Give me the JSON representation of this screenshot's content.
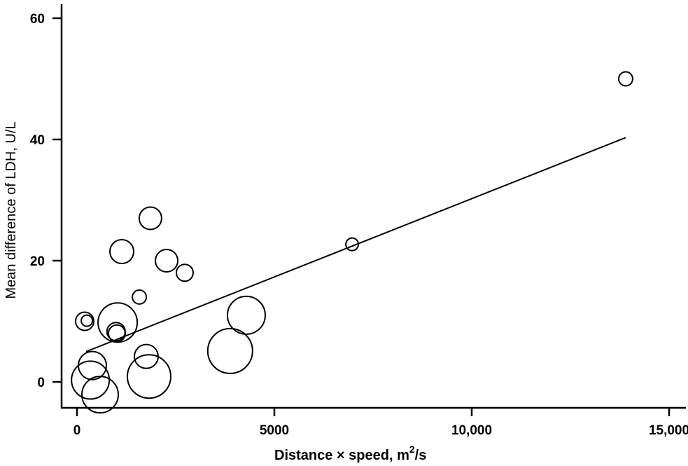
{
  "chart_data": {
    "type": "scatter",
    "title": "",
    "xlabel": "Distance × speed, m²/s",
    "xlabel_parts": {
      "main": "Distance × speed, m",
      "sup": "2",
      "tail": "/s"
    },
    "ylabel": "Mean difference of LDH, U/L",
    "xlim": [
      -400,
      15400
    ],
    "ylim": [
      -4.3,
      63
    ],
    "x_ticks": [
      0,
      5000,
      10000,
      15000
    ],
    "x_tick_labels": [
      "0",
      "5000",
      "10,000",
      "15,000"
    ],
    "y_ticks": [
      0,
      20,
      40,
      60
    ],
    "y_tick_labels": [
      "0",
      "20",
      "40",
      "60"
    ],
    "grid": false,
    "legend": null,
    "bubble_note": "circle size proportional to study weight",
    "points": [
      {
        "x": 13900,
        "y": 50.0,
        "r": 10
      },
      {
        "x": 6970,
        "y": 22.7,
        "r": 9
      },
      {
        "x": 1860,
        "y": 27.0,
        "r": 16
      },
      {
        "x": 1135,
        "y": 21.5,
        "r": 17
      },
      {
        "x": 2270,
        "y": 20.0,
        "r": 16
      },
      {
        "x": 2730,
        "y": 18.0,
        "r": 12
      },
      {
        "x": 1580,
        "y": 14.0,
        "r": 10
      },
      {
        "x": 4290,
        "y": 11.0,
        "r": 27
      },
      {
        "x": 195,
        "y": 10.0,
        "r": 13
      },
      {
        "x": 250,
        "y": 10.1,
        "r": 8
      },
      {
        "x": 1030,
        "y": 9.8,
        "r": 28
      },
      {
        "x": 990,
        "y": 8.3,
        "r": 13
      },
      {
        "x": 1010,
        "y": 8.0,
        "r": 12
      },
      {
        "x": 3880,
        "y": 5.1,
        "r": 32
      },
      {
        "x": 1755,
        "y": 4.2,
        "r": 17
      },
      {
        "x": 390,
        "y": 2.7,
        "r": 20
      },
      {
        "x": 1826,
        "y": 0.9,
        "r": 31
      },
      {
        "x": 340,
        "y": 0.3,
        "r": 27
      },
      {
        "x": 585,
        "y": -2.1,
        "r": 26
      }
    ],
    "fit_line": {
      "x": [
        230,
        13900
      ],
      "y": [
        5.0,
        40.3
      ]
    }
  }
}
